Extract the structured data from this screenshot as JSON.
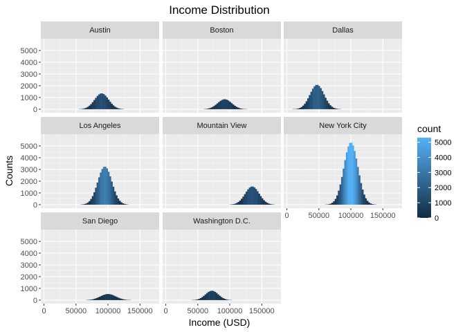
{
  "chart_data": {
    "type": "histogram",
    "title": "Income Distribution",
    "xlabel": "Income (USD)",
    "ylabel": "Counts",
    "facet_layout": "3 columns x 3 rows, wrapped",
    "x_ticks": [
      0,
      50000,
      100000,
      150000
    ],
    "x_tick_labels": [
      "0",
      "50000",
      "100000",
      "150000"
    ],
    "xlim": [
      -5000,
      180000
    ],
    "y_ticks": [
      0,
      1000,
      2000,
      3000,
      4000,
      5000
    ],
    "y_tick_labels": [
      "0",
      "1000",
      "2000",
      "3000",
      "4000",
      "5000"
    ],
    "ylim": [
      -300,
      6000
    ],
    "bin_width": 2500,
    "grid": true,
    "panel_background": "#ebebeb",
    "strip_background": "#d9d9d9",
    "legend": {
      "title": "count",
      "placement": "right",
      "ticks": [
        0,
        1000,
        2000,
        3000,
        4000,
        5000
      ],
      "tick_labels": [
        "0",
        "1000",
        "2000",
        "3000",
        "4000",
        "5000"
      ],
      "color_low": "#132b43",
      "color_high": "#56b1f7",
      "range": [
        0,
        5300
      ]
    },
    "facets": [
      {
        "city": "Austin",
        "center": 90000,
        "sd": 11000,
        "peak": 1350
      },
      {
        "city": "Boston",
        "center": 92000,
        "sd": 11000,
        "peak": 850
      },
      {
        "city": "Dallas",
        "center": 47000,
        "sd": 11000,
        "peak": 2080
      },
      {
        "city": "Los Angeles",
        "center": 95000,
        "sd": 11000,
        "peak": 3250
      },
      {
        "city": "Mountain View",
        "center": 135000,
        "sd": 11000,
        "peak": 1550
      },
      {
        "city": "New York City",
        "center": 100000,
        "sd": 11000,
        "peak": 5300
      },
      {
        "city": "San Diego",
        "center": 100000,
        "sd": 12000,
        "peak": 520
      },
      {
        "city": "Washington D.C.",
        "center": 72000,
        "sd": 10000,
        "peak": 800
      }
    ]
  }
}
